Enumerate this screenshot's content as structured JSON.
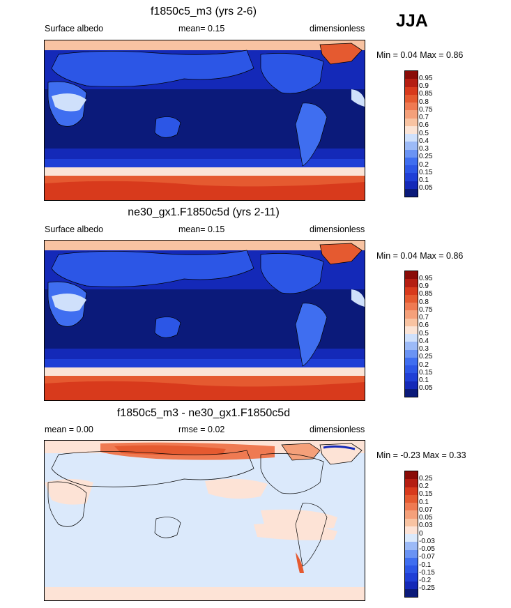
{
  "season": "JJA",
  "panels": [
    {
      "title": "f1850c5_m3 (yrs 2-6)",
      "left_label": "Surface albedo",
      "center_label": "mean=  0.15",
      "right_label": "dimensionless",
      "minmax": "Min =   0.04 Max =   0.86",
      "kind": "albedo"
    },
    {
      "title": "ne30_gx1.F1850c5d (yrs 2-11)",
      "left_label": "Surface albedo",
      "center_label": "mean=  0.15",
      "right_label": "dimensionless",
      "minmax": "Min =   0.04 Max =   0.86",
      "kind": "albedo"
    },
    {
      "title": "f1850c5_m3 - ne30_gx1.F1850c5d",
      "left_label": "mean =   0.00",
      "center_label": "rmse =   0.02",
      "right_label": "dimensionless",
      "minmax": "Min =  -0.23 Max =   0.33",
      "kind": "diff"
    }
  ],
  "chart_data": [
    {
      "type": "heatmap",
      "title": "f1850c5_m3 (yrs 2-6)",
      "variable": "Surface albedo",
      "units": "dimensionless",
      "mean": 0.15,
      "min": 0.04,
      "max": 0.86,
      "contour_levels": [
        0.05,
        0.1,
        0.15,
        0.2,
        0.25,
        0.3,
        0.4,
        0.5,
        0.6,
        0.7,
        0.75,
        0.8,
        0.85,
        0.9,
        0.95
      ],
      "colorbar_labels": [
        "0.95",
        "0.9",
        "0.85",
        "0.8",
        "0.75",
        "0.7",
        "0.6",
        "0.5",
        "0.4",
        "0.3",
        "0.25",
        "0.2",
        "0.15",
        "0.1",
        "0.05"
      ]
    },
    {
      "type": "heatmap",
      "title": "ne30_gx1.F1850c5d (yrs 2-11)",
      "variable": "Surface albedo",
      "units": "dimensionless",
      "mean": 0.15,
      "min": 0.04,
      "max": 0.86,
      "contour_levels": [
        0.05,
        0.1,
        0.15,
        0.2,
        0.25,
        0.3,
        0.4,
        0.5,
        0.6,
        0.7,
        0.75,
        0.8,
        0.85,
        0.9,
        0.95
      ],
      "colorbar_labels": [
        "0.95",
        "0.9",
        "0.85",
        "0.8",
        "0.75",
        "0.7",
        "0.6",
        "0.5",
        "0.4",
        "0.3",
        "0.25",
        "0.2",
        "0.15",
        "0.1",
        "0.05"
      ]
    },
    {
      "type": "heatmap",
      "title": "f1850c5_m3 - ne30_gx1.F1850c5d",
      "units": "dimensionless",
      "mean": 0.0,
      "rmse": 0.02,
      "min": -0.23,
      "max": 0.33,
      "contour_levels": [
        -0.25,
        -0.2,
        -0.15,
        -0.1,
        -0.07,
        -0.05,
        -0.03,
        0,
        0.03,
        0.05,
        0.07,
        0.1,
        0.15,
        0.2,
        0.25
      ],
      "colorbar_labels": [
        "0.25",
        "0.2",
        "0.15",
        "0.1",
        "0.07",
        "0.05",
        "0.03",
        "0",
        "-0.03",
        "-0.05",
        "-0.07",
        "-0.1",
        "-0.15",
        "-0.2",
        "-0.25"
      ]
    }
  ],
  "colors": {
    "albedo_scale": [
      "#0b1a7a",
      "#1429b8",
      "#1f3fd6",
      "#2c56e6",
      "#3f6ef0",
      "#6a93f4",
      "#9cbaf7",
      "#cfe0fb",
      "#fbe4d6",
      "#f8c3a2",
      "#f4a07a",
      "#ef7a52",
      "#e55a30",
      "#d83a1c",
      "#b51e12",
      "#8a0c08"
    ],
    "diff_scale": [
      "#0b1a7a",
      "#1429b8",
      "#1f3fd6",
      "#2c56e6",
      "#3f6ef0",
      "#6a93f4",
      "#9cbaf7",
      "#dbe9fb",
      "#fde3d6",
      "#f8c3a2",
      "#f4a07a",
      "#ef7a52",
      "#e55a30",
      "#d83a1c",
      "#b51e12",
      "#8a0c08"
    ]
  }
}
